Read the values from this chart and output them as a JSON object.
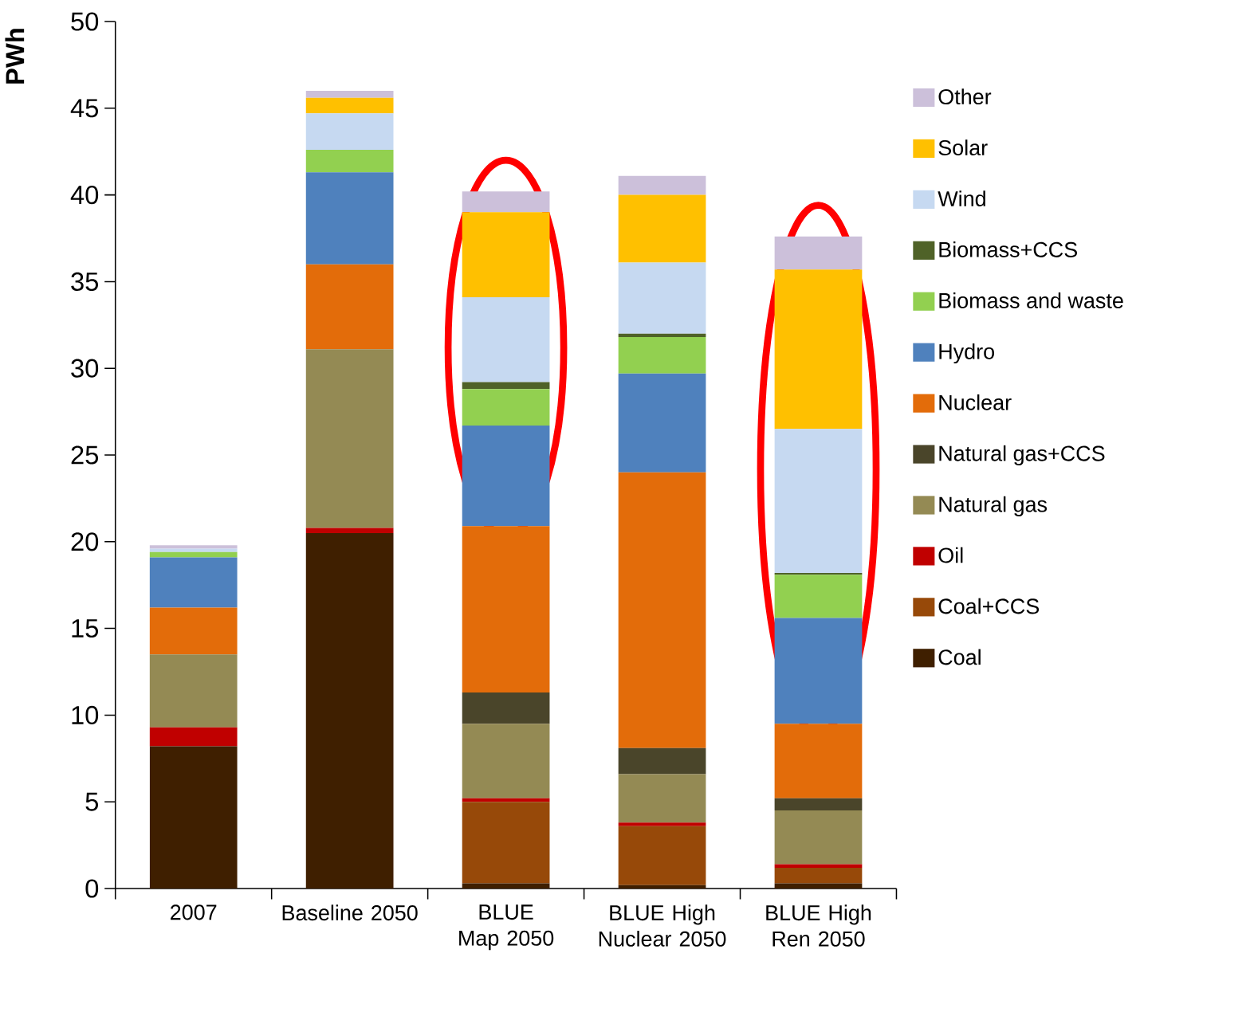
{
  "chart_data": {
    "type": "bar",
    "stacked": true,
    "ylabel": "PWh",
    "categories": [
      "2007",
      "Baseline 2050",
      "BLUE Map 2050",
      "BLUE High Nuclear 2050",
      "BLUE High Ren 2050"
    ],
    "ylim": [
      0,
      50
    ],
    "yticks": [
      0,
      5,
      10,
      15,
      20,
      25,
      30,
      35,
      40,
      45,
      50
    ],
    "grid": false,
    "legend": "right",
    "series": [
      {
        "name": "Coal",
        "color": "#3f1f00",
        "values": [
          8.2,
          20.5,
          0.3,
          0.2,
          0.3
        ]
      },
      {
        "name": "Coal+CCS",
        "color": "#974909",
        "values": [
          0,
          0,
          4.7,
          3.4,
          0.9
        ]
      },
      {
        "name": "Oil",
        "color": "#c00000",
        "values": [
          1.1,
          0.3,
          0.2,
          0.2,
          0.2
        ]
      },
      {
        "name": "Natural gas",
        "color": "#948a54",
        "values": [
          4.2,
          10.3,
          4.3,
          2.8,
          3.1
        ]
      },
      {
        "name": "Natural gas+CCS",
        "color": "#4a452a",
        "values": [
          0,
          0,
          1.8,
          1.5,
          0.7
        ]
      },
      {
        "name": "Nuclear",
        "color": "#e36c0a",
        "values": [
          2.7,
          4.9,
          9.6,
          15.9,
          4.3
        ]
      },
      {
        "name": "Hydro",
        "color": "#4f81bd",
        "values": [
          2.9,
          5.3,
          5.8,
          5.7,
          6.1
        ]
      },
      {
        "name": "Biomass and waste",
        "color": "#92d050",
        "values": [
          0.3,
          1.3,
          2.1,
          2.1,
          2.5
        ]
      },
      {
        "name": "Biomass+CCS",
        "color": "#4f6228",
        "values": [
          0,
          0,
          0.4,
          0.2,
          0.1
        ]
      },
      {
        "name": "Wind",
        "color": "#c6d9f1",
        "values": [
          0.2,
          2.1,
          4.9,
          4.1,
          8.3
        ]
      },
      {
        "name": "Solar",
        "color": "#ffc000",
        "values": [
          0,
          0.9,
          4.9,
          3.9,
          9.2
        ]
      },
      {
        "name": "Other",
        "color": "#ccc0da",
        "values": [
          0.2,
          0.4,
          1.2,
          1.1,
          1.9
        ]
      }
    ]
  }
}
